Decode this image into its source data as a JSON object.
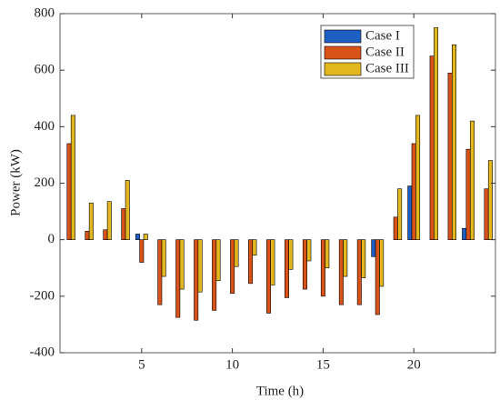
{
  "chart_data": {
    "type": "bar",
    "xlabel": "Time (h)",
    "ylabel": "Power (kW)",
    "x": [
      1,
      2,
      3,
      4,
      5,
      6,
      7,
      8,
      9,
      10,
      11,
      12,
      13,
      14,
      15,
      16,
      17,
      18,
      19,
      20,
      21,
      22,
      23,
      24
    ],
    "series": [
      {
        "name": "Case I",
        "color": "#1f5fc4",
        "values": [
          0,
          0,
          0,
          0,
          20,
          0,
          0,
          0,
          0,
          0,
          0,
          0,
          0,
          0,
          0,
          0,
          0,
          -60,
          0,
          190,
          0,
          0,
          40,
          0
        ]
      },
      {
        "name": "Case II",
        "color": "#d95319",
        "values": [
          340,
          30,
          35,
          110,
          -80,
          -230,
          -275,
          -285,
          -250,
          -190,
          -155,
          -260,
          -205,
          -175,
          -200,
          -230,
          -230,
          -265,
          80,
          340,
          650,
          590,
          320,
          180
        ]
      },
      {
        "name": "Case III",
        "color": "#e3b81f",
        "values": [
          440,
          130,
          135,
          210,
          20,
          -130,
          -175,
          -185,
          -145,
          -95,
          -55,
          -160,
          -105,
          -75,
          -100,
          -130,
          -135,
          -165,
          180,
          440,
          750,
          690,
          420,
          280
        ]
      }
    ],
    "xlim": [
      0.5,
      24.5
    ],
    "xticks": [
      5,
      10,
      15,
      20
    ],
    "ylim": [
      -400,
      800
    ],
    "yticks": [
      -400,
      -200,
      0,
      200,
      400,
      600,
      800
    ],
    "legend": "top-right"
  }
}
